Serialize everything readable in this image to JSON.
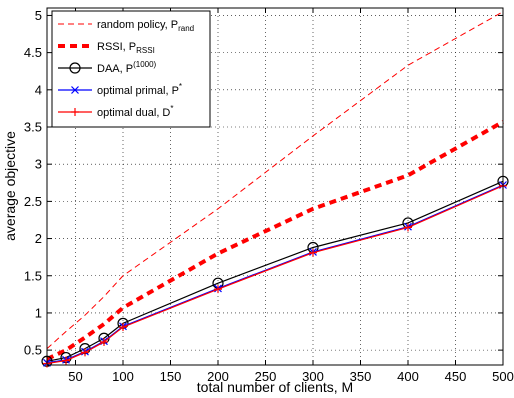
{
  "chart_data": {
    "type": "line",
    "xlabel": "total number of clients, M",
    "ylabel": "average objective",
    "xlim": [
      20,
      500
    ],
    "ylim": [
      0.3,
      5.1
    ],
    "xticks": [
      50,
      100,
      150,
      200,
      250,
      300,
      350,
      400,
      450,
      500
    ],
    "yticks": [
      0.5,
      1,
      1.5,
      2,
      2.5,
      3,
      3.5,
      4,
      4.5,
      5
    ],
    "grid": true,
    "legend_position": "top-left",
    "series": [
      {
        "name": "random policy, P",
        "name_sub": "rand",
        "name_sub_type": "sub",
        "color": "#ff0000",
        "line_style": "thin-dashed",
        "marker": "none",
        "x": [
          20,
          40,
          60,
          80,
          100,
          200,
          300,
          400,
          500
        ],
        "y": [
          0.52,
          0.75,
          0.97,
          1.22,
          1.5,
          2.4,
          3.38,
          4.33,
          5.05
        ]
      },
      {
        "name": "RSSI, P",
        "name_sub": "RSSI",
        "name_sub_type": "sub",
        "color": "#ff0000",
        "line_style": "thick-dashed",
        "marker": "none",
        "x": [
          20,
          40,
          60,
          80,
          100,
          200,
          300,
          400,
          500
        ],
        "y": [
          0.38,
          0.5,
          0.67,
          0.85,
          1.07,
          1.8,
          2.4,
          2.85,
          3.57
        ]
      },
      {
        "name": "DAA, P",
        "name_sub": "(1000)",
        "name_sub_type": "sup",
        "color": "#000000",
        "line_style": "solid",
        "marker": "circle",
        "x": [
          20,
          40,
          60,
          80,
          100,
          200,
          300,
          400,
          500
        ],
        "y": [
          0.35,
          0.4,
          0.52,
          0.66,
          0.86,
          1.4,
          1.88,
          2.21,
          2.77
        ]
      },
      {
        "name": "optimal primal, P",
        "name_sub": "*",
        "name_sub_type": "sup",
        "color": "#0000ff",
        "line_style": "solid",
        "marker": "x",
        "x": [
          20,
          40,
          60,
          80,
          100,
          200,
          300,
          400,
          500
        ],
        "y": [
          0.33,
          0.37,
          0.48,
          0.62,
          0.82,
          1.33,
          1.82,
          2.16,
          2.72
        ]
      },
      {
        "name": "optimal dual, D",
        "name_sub": "*",
        "name_sub_type": "sup",
        "color": "#ff0000",
        "line_style": "solid",
        "marker": "plus",
        "x": [
          20,
          40,
          60,
          80,
          100,
          200,
          300,
          400,
          500
        ],
        "y": [
          0.32,
          0.36,
          0.47,
          0.61,
          0.81,
          1.32,
          1.81,
          2.15,
          2.71
        ]
      }
    ]
  }
}
